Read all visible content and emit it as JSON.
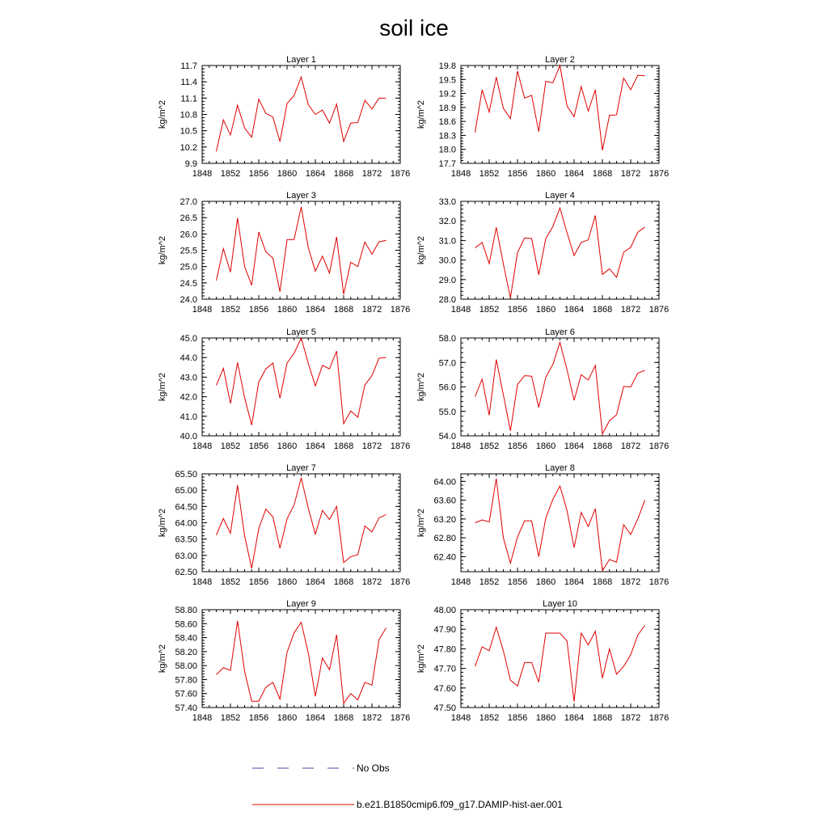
{
  "figure": {
    "title": "soil ice",
    "legend": {
      "entries": [
        {
          "label": "No Obs",
          "color": "#4a4aa8",
          "style": "dashed"
        },
        {
          "label": "b.e21.B1850cmip6.f09_g17.DAMIP-hist-aer.001",
          "color": "#e00000",
          "style": "solid"
        }
      ]
    }
  },
  "chart_data": [
    {
      "type": "line",
      "title": "Layer 1",
      "ylabel": "kg/m^2",
      "xlim": [
        1848,
        1876
      ],
      "ylim": [
        9.9,
        11.7
      ],
      "xticks": [
        1848,
        1852,
        1856,
        1860,
        1864,
        1868,
        1872,
        1876
      ],
      "yticks": [
        "9.9",
        "10.2",
        "10.5",
        "10.8",
        "11.1",
        "11.4",
        "11.7"
      ],
      "x": [
        1850,
        1851,
        1852,
        1853,
        1854,
        1855,
        1856,
        1857,
        1858,
        1859,
        1860,
        1861,
        1862,
        1863,
        1864,
        1865,
        1866,
        1867,
        1868,
        1869,
        1870,
        1871,
        1872,
        1873,
        1874
      ],
      "series": [
        {
          "name": "b.e21.B1850cmip6.f09_g17.DAMIP-hist-aer.001",
          "color": "#e00000",
          "values": [
            10.12,
            10.7,
            10.42,
            10.97,
            10.55,
            10.38,
            11.08,
            10.82,
            10.75,
            10.3,
            11.0,
            11.15,
            11.49,
            10.98,
            10.8,
            10.88,
            10.64,
            10.99,
            10.3,
            10.64,
            10.65,
            11.06,
            10.9,
            11.1,
            11.1
          ]
        }
      ]
    },
    {
      "type": "line",
      "title": "Layer 2",
      "ylabel": "kg/m^2",
      "xlim": [
        1848,
        1876
      ],
      "ylim": [
        17.7,
        19.8
      ],
      "xticks": [
        1848,
        1852,
        1856,
        1860,
        1864,
        1868,
        1872,
        1876
      ],
      "yticks": [
        "17.7",
        "18.0",
        "18.3",
        "18.6",
        "18.9",
        "19.2",
        "19.5",
        "19.8"
      ],
      "x": [
        1850,
        1851,
        1852,
        1853,
        1854,
        1855,
        1856,
        1857,
        1858,
        1859,
        1860,
        1861,
        1862,
        1863,
        1864,
        1865,
        1866,
        1867,
        1868,
        1869,
        1870,
        1871,
        1872,
        1873,
        1874
      ],
      "series": [
        {
          "name": "b.e21.B1850cmip6.f09_g17.DAMIP-hist-aer.001",
          "color": "#e00000",
          "values": [
            18.36,
            19.28,
            18.8,
            19.55,
            18.88,
            18.66,
            19.68,
            19.1,
            19.16,
            18.38,
            19.46,
            19.43,
            19.8,
            18.93,
            18.7,
            19.35,
            18.82,
            19.28,
            17.98,
            18.73,
            18.74,
            19.53,
            19.28,
            19.59,
            19.58
          ]
        }
      ]
    },
    {
      "type": "line",
      "title": "Layer 3",
      "ylabel": "kg/m^2",
      "xlim": [
        1848,
        1876
      ],
      "ylim": [
        24.0,
        27.0
      ],
      "xticks": [
        1848,
        1852,
        1856,
        1860,
        1864,
        1868,
        1872,
        1876
      ],
      "yticks": [
        "24.0",
        "24.5",
        "25.0",
        "25.5",
        "26.0",
        "26.5",
        "27.0"
      ],
      "x": [
        1850,
        1851,
        1852,
        1853,
        1854,
        1855,
        1856,
        1857,
        1858,
        1859,
        1860,
        1861,
        1862,
        1863,
        1864,
        1865,
        1866,
        1867,
        1868,
        1869,
        1870,
        1871,
        1872,
        1873,
        1874
      ],
      "series": [
        {
          "name": "b.e21.B1850cmip6.f09_g17.DAMIP-hist-aer.001",
          "color": "#e00000",
          "values": [
            24.57,
            25.55,
            24.83,
            26.49,
            25.0,
            24.43,
            26.06,
            25.45,
            25.26,
            24.23,
            25.83,
            25.83,
            26.83,
            25.58,
            24.86,
            25.32,
            24.8,
            25.91,
            24.15,
            25.13,
            25.0,
            25.75,
            25.38,
            25.76,
            25.8
          ]
        }
      ]
    },
    {
      "type": "line",
      "title": "Layer 4",
      "ylabel": "kg/m^2",
      "xlim": [
        1848,
        1876
      ],
      "ylim": [
        28.0,
        33.0
      ],
      "xticks": [
        1848,
        1852,
        1856,
        1860,
        1864,
        1868,
        1872,
        1876
      ],
      "yticks": [
        "28.0",
        "29.0",
        "30.0",
        "31.0",
        "32.0",
        "33.0"
      ],
      "x": [
        1850,
        1851,
        1852,
        1853,
        1854,
        1855,
        1856,
        1857,
        1858,
        1859,
        1860,
        1861,
        1862,
        1863,
        1864,
        1865,
        1866,
        1867,
        1868,
        1869,
        1870,
        1871,
        1872,
        1873,
        1874
      ],
      "series": [
        {
          "name": "b.e21.B1850cmip6.f09_g17.DAMIP-hist-aer.001",
          "color": "#e00000",
          "values": [
            30.62,
            30.9,
            29.82,
            31.67,
            29.8,
            28.07,
            30.38,
            31.13,
            31.1,
            29.25,
            31.1,
            31.72,
            32.66,
            31.4,
            30.23,
            30.9,
            31.03,
            32.28,
            29.26,
            29.55,
            29.12,
            30.4,
            30.65,
            31.42,
            31.68
          ]
        }
      ]
    },
    {
      "type": "line",
      "title": "Layer 5",
      "ylabel": "kg/m^2",
      "xlim": [
        1848,
        1876
      ],
      "ylim": [
        40.0,
        45.0
      ],
      "xticks": [
        1848,
        1852,
        1856,
        1860,
        1864,
        1868,
        1872,
        1876
      ],
      "yticks": [
        "40.0",
        "41.0",
        "42.0",
        "43.0",
        "44.0",
        "45.0"
      ],
      "x": [
        1850,
        1851,
        1852,
        1853,
        1854,
        1855,
        1856,
        1857,
        1858,
        1859,
        1860,
        1861,
        1862,
        1863,
        1864,
        1865,
        1866,
        1867,
        1868,
        1869,
        1870,
        1871,
        1872,
        1873,
        1874
      ],
      "series": [
        {
          "name": "b.e21.B1850cmip6.f09_g17.DAMIP-hist-aer.001",
          "color": "#e00000",
          "values": [
            42.58,
            43.45,
            41.65,
            43.75,
            41.95,
            40.55,
            42.75,
            43.42,
            43.72,
            41.92,
            43.72,
            44.22,
            45.0,
            43.7,
            42.55,
            43.6,
            43.42,
            44.33,
            40.62,
            41.27,
            40.95,
            42.6,
            43.08,
            43.97,
            44.0
          ]
        }
      ]
    },
    {
      "type": "line",
      "title": "Layer 6",
      "ylabel": "kg/m^2",
      "xlim": [
        1848,
        1876
      ],
      "ylim": [
        54.0,
        58.0
      ],
      "xticks": [
        1848,
        1852,
        1856,
        1860,
        1864,
        1868,
        1872,
        1876
      ],
      "yticks": [
        "54.0",
        "55.0",
        "56.0",
        "57.0",
        "58.0"
      ],
      "x": [
        1850,
        1851,
        1852,
        1853,
        1854,
        1855,
        1856,
        1857,
        1858,
        1859,
        1860,
        1861,
        1862,
        1863,
        1864,
        1865,
        1866,
        1867,
        1868,
        1869,
        1870,
        1871,
        1872,
        1873,
        1874
      ],
      "series": [
        {
          "name": "b.e21.B1850cmip6.f09_g17.DAMIP-hist-aer.001",
          "color": "#e00000",
          "values": [
            55.6,
            56.32,
            54.84,
            57.12,
            55.68,
            54.2,
            56.1,
            56.46,
            56.44,
            55.16,
            56.4,
            56.92,
            57.82,
            56.7,
            55.45,
            56.5,
            56.28,
            56.88,
            54.08,
            54.62,
            54.86,
            56.02,
            56.0,
            56.56,
            56.68
          ]
        }
      ]
    },
    {
      "type": "line",
      "title": "Layer 7",
      "ylabel": "kg/m^2",
      "xlim": [
        1848,
        1876
      ],
      "ylim": [
        62.5,
        65.5
      ],
      "xticks": [
        1848,
        1852,
        1856,
        1860,
        1864,
        1868,
        1872,
        1876
      ],
      "yticks": [
        "62.50",
        "63.00",
        "63.50",
        "64.00",
        "64.50",
        "65.00",
        "65.50"
      ],
      "x": [
        1850,
        1851,
        1852,
        1853,
        1854,
        1855,
        1856,
        1857,
        1858,
        1859,
        1860,
        1861,
        1862,
        1863,
        1864,
        1865,
        1866,
        1867,
        1868,
        1869,
        1870,
        1871,
        1872,
        1873,
        1874
      ],
      "series": [
        {
          "name": "b.e21.B1850cmip6.f09_g17.DAMIP-hist-aer.001",
          "color": "#e00000",
          "values": [
            63.62,
            64.13,
            63.68,
            65.15,
            63.6,
            62.6,
            63.82,
            64.42,
            64.18,
            63.22,
            64.12,
            64.55,
            65.38,
            64.45,
            63.65,
            64.38,
            64.1,
            64.5,
            62.78,
            62.96,
            63.02,
            63.9,
            63.72,
            64.15,
            64.25
          ]
        }
      ]
    },
    {
      "type": "line",
      "title": "Layer 8",
      "ylabel": "kg/m^2",
      "xlim": [
        1848,
        1876
      ],
      "ylim": [
        62.08,
        64.16
      ],
      "xticks": [
        1848,
        1852,
        1856,
        1860,
        1864,
        1868,
        1872,
        1876
      ],
      "yticks": [
        "62.40",
        "62.80",
        "63.20",
        "63.60",
        "64.00"
      ],
      "x": [
        1850,
        1851,
        1852,
        1853,
        1854,
        1855,
        1856,
        1857,
        1858,
        1859,
        1860,
        1861,
        1862,
        1863,
        1864,
        1865,
        1866,
        1867,
        1868,
        1869,
        1870,
        1871,
        1872,
        1873,
        1874
      ],
      "series": [
        {
          "name": "b.e21.B1850cmip6.f09_g17.DAMIP-hist-aer.001",
          "color": "#e00000",
          "values": [
            63.12,
            63.18,
            63.14,
            64.06,
            62.8,
            62.26,
            62.82,
            63.16,
            63.16,
            62.4,
            63.22,
            63.62,
            63.9,
            63.38,
            62.59,
            63.34,
            63.04,
            63.42,
            62.1,
            62.34,
            62.28,
            63.08,
            62.87,
            63.2,
            63.6
          ]
        }
      ]
    },
    {
      "type": "line",
      "title": "Layer 9",
      "ylabel": "kg/m^2",
      "xlim": [
        1848,
        1876
      ],
      "ylim": [
        57.4,
        58.8
      ],
      "xticks": [
        1848,
        1852,
        1856,
        1860,
        1864,
        1868,
        1872,
        1876
      ],
      "yticks": [
        "57.40",
        "57.60",
        "57.80",
        "58.00",
        "58.20",
        "58.40",
        "58.60",
        "58.80"
      ],
      "x": [
        1850,
        1851,
        1852,
        1853,
        1854,
        1855,
        1856,
        1857,
        1858,
        1859,
        1860,
        1861,
        1862,
        1863,
        1864,
        1865,
        1866,
        1867,
        1868,
        1869,
        1870,
        1871,
        1872,
        1873,
        1874
      ],
      "series": [
        {
          "name": "b.e21.B1850cmip6.f09_g17.DAMIP-hist-aer.001",
          "color": "#e00000",
          "values": [
            57.87,
            57.97,
            57.93,
            58.64,
            57.92,
            57.49,
            57.49,
            57.69,
            57.76,
            57.52,
            58.19,
            58.47,
            58.62,
            58.18,
            57.56,
            58.11,
            57.94,
            58.44,
            57.46,
            57.6,
            57.51,
            57.76,
            57.72,
            58.37,
            58.54
          ]
        }
      ]
    },
    {
      "type": "line",
      "title": "Layer 10",
      "ylabel": "kg/m^2",
      "xlim": [
        1848,
        1876
      ],
      "ylim": [
        47.5,
        48.0
      ],
      "xticks": [
        1848,
        1852,
        1856,
        1860,
        1864,
        1868,
        1872,
        1876
      ],
      "yticks": [
        "47.50",
        "47.60",
        "47.70",
        "47.80",
        "47.90",
        "48.00"
      ],
      "x": [
        1850,
        1851,
        1852,
        1853,
        1854,
        1855,
        1856,
        1857,
        1858,
        1859,
        1860,
        1861,
        1862,
        1863,
        1864,
        1865,
        1866,
        1867,
        1868,
        1869,
        1870,
        1871,
        1872,
        1873,
        1874
      ],
      "series": [
        {
          "name": "b.e21.B1850cmip6.f09_g17.DAMIP-hist-aer.001",
          "color": "#e00000",
          "values": [
            47.71,
            47.81,
            47.79,
            47.91,
            47.79,
            47.64,
            47.61,
            47.73,
            47.73,
            47.63,
            47.88,
            47.88,
            47.88,
            47.84,
            47.53,
            47.88,
            47.82,
            47.89,
            47.65,
            47.8,
            47.67,
            47.71,
            47.77,
            47.87,
            47.92
          ]
        }
      ]
    }
  ]
}
